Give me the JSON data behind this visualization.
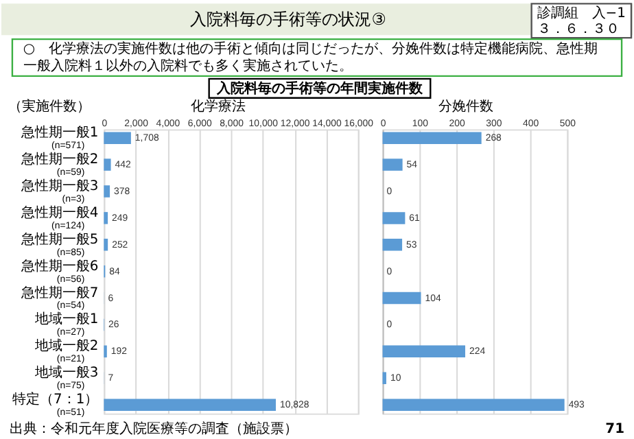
{
  "chart_data": [
    {
      "type": "bar",
      "orientation": "horizontal",
      "title": "化学療法",
      "ylabel": "（実施件数）",
      "categories": [
        "急性期一般1\n(n=571)",
        "急性期一般2\n(n=59)",
        "急性期一般3\n(n=3)",
        "急性期一般4\n(n=124)",
        "急性期一般5\n(n=85)",
        "急性期一般6\n(n=56)",
        "急性期一般7\n(n=54)",
        "地域一般1\n(n=27)",
        "地域一般2\n(n=21)",
        "地域一般3\n(n=75)",
        "特定（7：1）\n(n=51)"
      ],
      "values": [
        1708,
        442,
        378,
        249,
        252,
        84,
        6,
        26,
        192,
        7,
        10828
      ],
      "value_labels": [
        "1,708",
        "442",
        "378",
        "249",
        "252",
        "84",
        "6",
        "26",
        "192",
        "7",
        "10,828"
      ],
      "color": "#5b9bd5",
      "xlim": [
        0,
        16000
      ],
      "xticks": [
        0,
        {
          "value": 2000,
          "label": "2,000"
        },
        {
          "value": 4000,
          "label": "4,000"
        },
        {
          "value": 6000,
          "label": "6,000"
        },
        {
          "value": 8000,
          "label": "8,000"
        },
        {
          "value": 10000,
          "label": "10,000"
        },
        {
          "value": 12000,
          "label": "12,000"
        },
        {
          "value": 14000,
          "label": "14,000"
        },
        {
          "value": 16000,
          "label": "16,000"
        }
      ],
      "grid": "x",
      "annotations": [
        "入院料毎の手術等の状況③",
        "診調組　入−1\n３．６．３０",
        "○　化学療法の実施件数は他の手術と傾向は同じだったが、分娩件数は特定機能病院、急性期一般入院料１以外の入院料でも多く実施されていた。",
        "入院料毎の手術等の年間実施件数",
        "出典：令和元年度入院医療等の調査（施設票）",
        "71"
      ]
    },
    {
      "type": "bar",
      "orientation": "horizontal",
      "title": "分娩件数",
      "categories": [
        null,
        null,
        null,
        null,
        null,
        null,
        null,
        null,
        null,
        null,
        null
      ],
      "values": [
        268,
        54,
        0,
        61,
        53,
        0,
        104,
        0,
        224,
        10,
        493
      ],
      "data_labels": true,
      "color": "#5b9bd5",
      "xlim": [
        0,
        500
      ],
      "xticks": [
        0,
        100,
        200,
        300,
        400,
        500
      ],
      "grid": "x",
      "tick_labels": "x"
    }
  ]
}
